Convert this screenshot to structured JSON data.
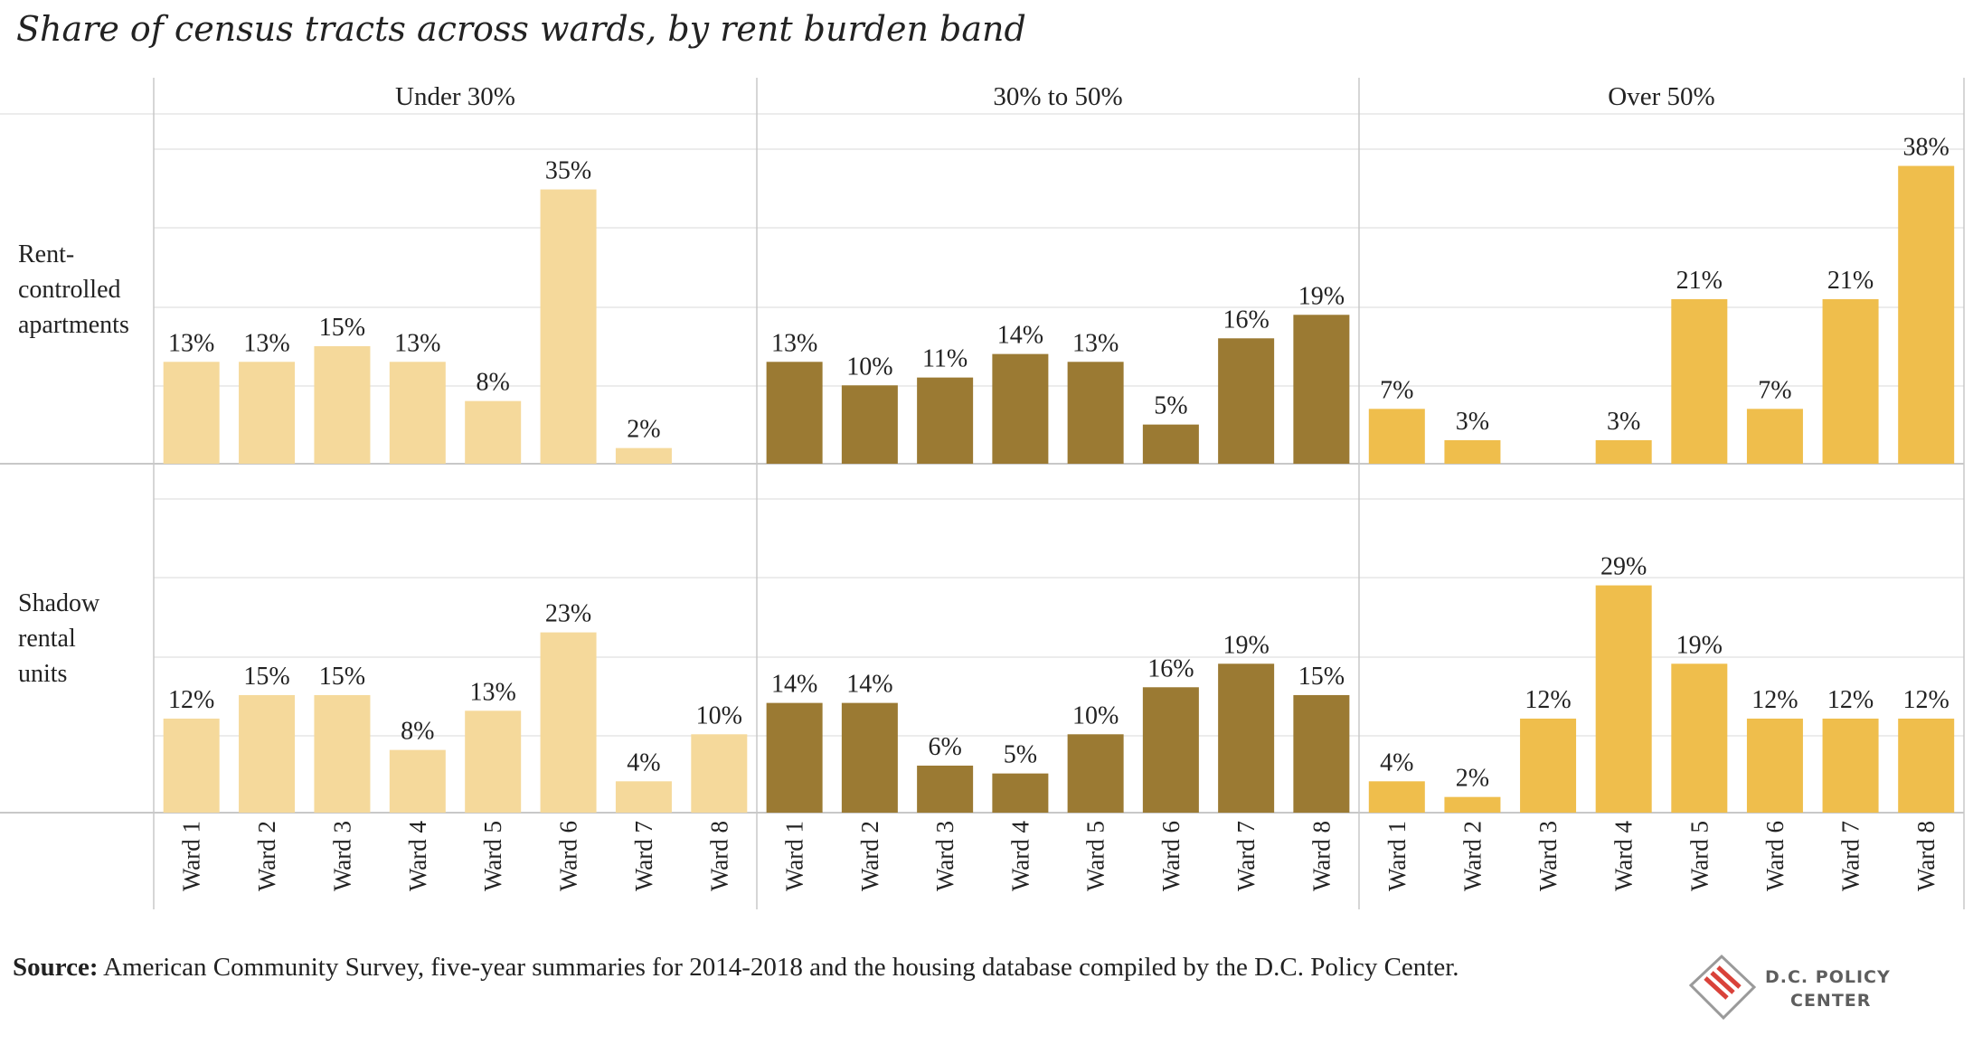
{
  "title": "Share of census tracts across wards, by rent burden band",
  "source_label": "Source:",
  "source_text": " American Community Survey, five-year summaries for 2014-2018 and the housing database compiled by the D.C. Policy Center.",
  "logo": {
    "line1": "D.C. POLICY",
    "line2": "CENTER",
    "icon": "dc-map-flag-icon"
  },
  "colors": {
    "Under 30%": "#f5d99b",
    "30% to 50%": "#9b7a33",
    "Over 50%": "#efbe4c",
    "grid": "#e6e6e6",
    "axis": "#c8c8c8"
  },
  "chart_data": {
    "type": "bar",
    "facet_columns": [
      "Under 30%",
      "30% to 50%",
      "Over 50%"
    ],
    "facet_rows": [
      "Rent-controlled apartments",
      "Shadow rental units"
    ],
    "row_label_lines": [
      [
        "Rent-",
        "controlled",
        "apartments"
      ],
      [
        "Shadow",
        "rental",
        "units"
      ]
    ],
    "categories": [
      "Ward 1",
      "Ward 2",
      "Ward 3",
      "Ward 4",
      "Ward 5",
      "Ward 6",
      "Ward 7",
      "Ward 8"
    ],
    "ylim": [
      0,
      40
    ],
    "grid": true,
    "panels": [
      {
        "row": "Rent-controlled apartments",
        "column": "Under 30%",
        "values": [
          13,
          13,
          15,
          13,
          8,
          35,
          2,
          null
        ],
        "labels": [
          "13%",
          "13%",
          "15%",
          "13%",
          "8%",
          "35%",
          "2%",
          ""
        ]
      },
      {
        "row": "Rent-controlled apartments",
        "column": "30% to 50%",
        "values": [
          13,
          10,
          11,
          14,
          13,
          5,
          16,
          19
        ],
        "labels": [
          "13%",
          "10%",
          "11%",
          "14%",
          "13%",
          "5%",
          "16%",
          "19%"
        ]
      },
      {
        "row": "Rent-controlled apartments",
        "column": "Over 50%",
        "values": [
          7,
          3,
          null,
          3,
          21,
          7,
          21,
          38
        ],
        "labels": [
          "7%",
          "3%",
          "",
          "3%",
          "21%",
          "7%",
          "21%",
          "38%"
        ]
      },
      {
        "row": "Shadow rental units",
        "column": "Under 30%",
        "values": [
          12,
          15,
          15,
          8,
          13,
          23,
          4,
          10
        ],
        "labels": [
          "12%",
          "15%",
          "15%",
          "8%",
          "13%",
          "23%",
          "4%",
          "10%"
        ]
      },
      {
        "row": "Shadow rental units",
        "column": "30% to 50%",
        "values": [
          14,
          14,
          6,
          5,
          10,
          16,
          19,
          15
        ],
        "labels": [
          "14%",
          "14%",
          "6%",
          "5%",
          "10%",
          "16%",
          "19%",
          "15%"
        ]
      },
      {
        "row": "Shadow rental units",
        "column": "Over 50%",
        "values": [
          4,
          2,
          12,
          29,
          19,
          12,
          12,
          12
        ],
        "labels": [
          "4%",
          "2%",
          "12%",
          "29%",
          "19%",
          "12%",
          "12%",
          "12%"
        ]
      }
    ]
  }
}
